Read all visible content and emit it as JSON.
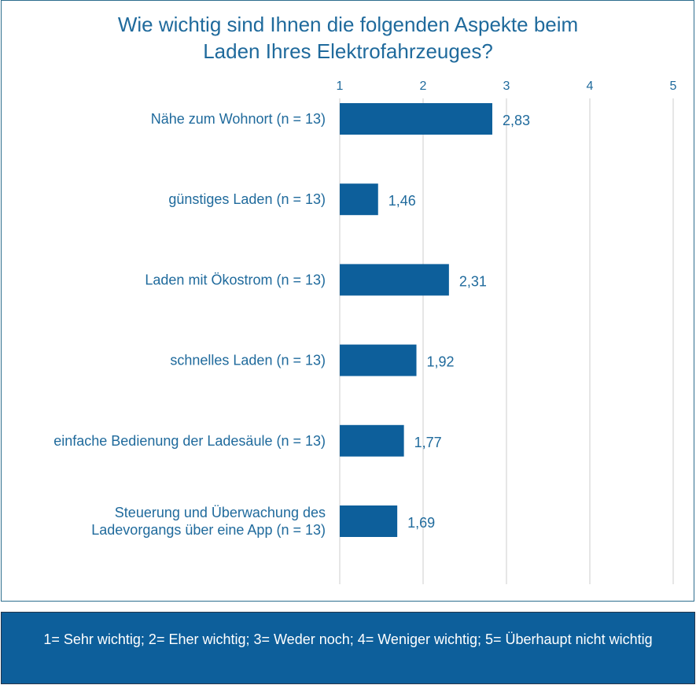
{
  "chart_data": {
    "type": "bar",
    "orientation": "horizontal",
    "title": "Wie wichtig sind Ihnen die folgenden Aspekte beim\nLaden Ihres Elektrofahrzeuges?",
    "categories": [
      "Nähe zum Wohnort (n = 13)",
      "günstiges Laden (n = 13)",
      "Laden mit Ökostrom (n = 13)",
      "schnelles Laden (n = 13)",
      "einfache Bedienung der Ladesäule (n = 13)",
      "Steuerung und Überwachung des\nLadevorgangs über eine App (n = 13)"
    ],
    "values": [
      2.83,
      1.46,
      2.31,
      1.92,
      1.77,
      1.69
    ],
    "value_labels": [
      "2,83",
      "1,46",
      "2,31",
      "1,92",
      "1,77",
      "1,69"
    ],
    "xlim": [
      1,
      5
    ],
    "x_ticks": [
      "1",
      "2",
      "3",
      "4",
      "5"
    ],
    "x_axis_position": "top",
    "grid": true,
    "bar_color": "#0d5f9b"
  },
  "legend_note": "1= Sehr wichtig; 2= Eher wichtig; 3= Weder noch; 4= Weniger wichtig; 5= Überhaupt nicht wichtig",
  "colors": {
    "bar": "#0d5f9b",
    "text": "#1f6a9c",
    "grid": "#cccccc",
    "legend_bg": "#0d5f9b"
  }
}
